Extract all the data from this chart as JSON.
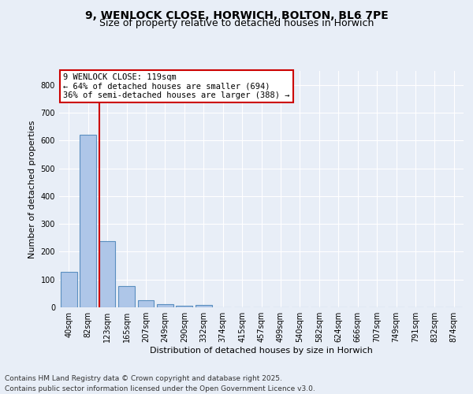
{
  "title_line1": "9, WENLOCK CLOSE, HORWICH, BOLTON, BL6 7PE",
  "title_line2": "Size of property relative to detached houses in Horwich",
  "xlabel": "Distribution of detached houses by size in Horwich",
  "ylabel": "Number of detached properties",
  "categories": [
    "40sqm",
    "82sqm",
    "123sqm",
    "165sqm",
    "207sqm",
    "249sqm",
    "290sqm",
    "332sqm",
    "374sqm",
    "415sqm",
    "457sqm",
    "499sqm",
    "540sqm",
    "582sqm",
    "624sqm",
    "666sqm",
    "707sqm",
    "749sqm",
    "791sqm",
    "832sqm",
    "874sqm"
  ],
  "values": [
    128,
    620,
    238,
    76,
    25,
    10,
    6,
    8,
    0,
    0,
    0,
    0,
    0,
    0,
    0,
    0,
    0,
    0,
    0,
    0,
    0
  ],
  "bar_color": "#aec6e8",
  "bar_edge_color": "#5a8fc0",
  "vline_index": 1.575,
  "vline_color": "#cc0000",
  "annotation_text": "9 WENLOCK CLOSE: 119sqm\n← 64% of detached houses are smaller (694)\n36% of semi-detached houses are larger (388) →",
  "annotation_box_color": "#ffffff",
  "annotation_box_edge": "#cc0000",
  "ylim": [
    0,
    850
  ],
  "yticks": [
    0,
    100,
    200,
    300,
    400,
    500,
    600,
    700,
    800
  ],
  "background_color": "#e8eef7",
  "plot_background": "#e8eef7",
  "grid_color": "#ffffff",
  "footer_line1": "Contains HM Land Registry data © Crown copyright and database right 2025.",
  "footer_line2": "Contains public sector information licensed under the Open Government Licence v3.0.",
  "title_fontsize": 10,
  "subtitle_fontsize": 9,
  "label_fontsize": 8,
  "tick_fontsize": 7,
  "annotation_fontsize": 7.5,
  "footer_fontsize": 6.5
}
